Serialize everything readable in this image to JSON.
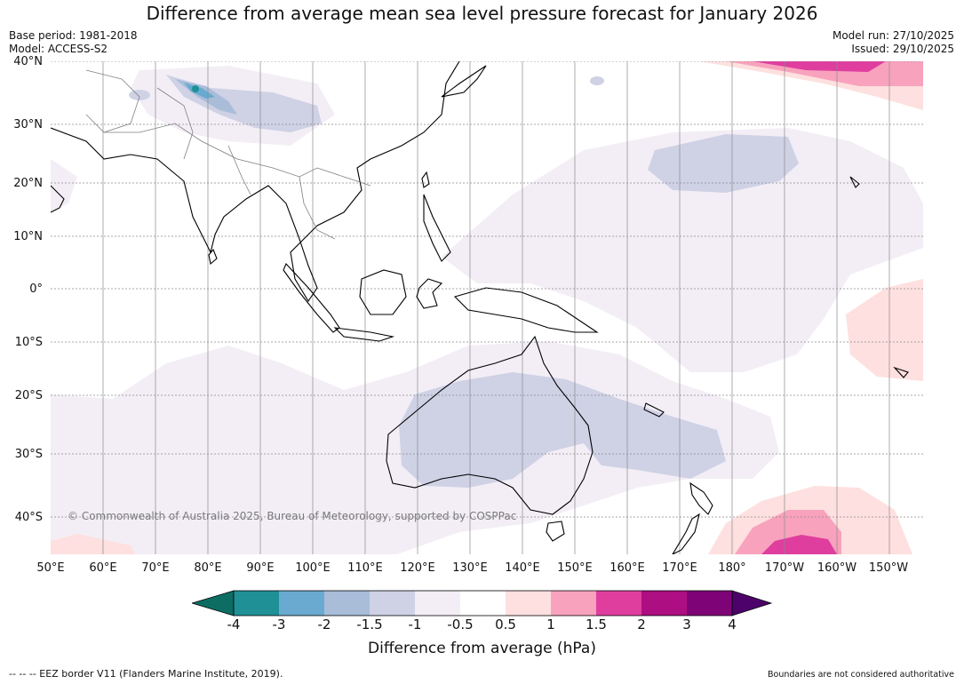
{
  "title": "Difference from average mean sea level pressure forecast for January 2026",
  "meta_left": {
    "line1": "Base period: 1981-2018",
    "line2": "Model: ACCESS-S2"
  },
  "meta_right": {
    "line1": "Model run: 27/10/2025",
    "line2": "Issued: 29/10/2025"
  },
  "lat_labels": [
    "40°N",
    "30°N",
    "20°N",
    "10°N",
    "0°",
    "10°S",
    "20°S",
    "30°S",
    "40°S"
  ],
  "lon_labels": [
    "50°E",
    "60°E",
    "70°E",
    "80°E",
    "90°E",
    "100°E",
    "110°E",
    "120°E",
    "130°E",
    "140°E",
    "150°E",
    "160°E",
    "170°E",
    "180°",
    "170°W",
    "160°W",
    "150°W"
  ],
  "copyright": "© Commonwealth of Australia 2025, Bureau of Meteorology, supported by COSPPac",
  "colorbar": {
    "ticks": [
      "-4",
      "-3",
      "-2",
      "-1.5",
      "-1",
      "-0.5",
      "0.5",
      "1",
      "1.5",
      "2",
      "3",
      "4"
    ],
    "colors": [
      "#0e6d63",
      "#1e9096",
      "#6aaad0",
      "#a9bdd9",
      "#cfd1e5",
      "#f3eef6",
      "#ffffff",
      "#fde0df",
      "#f8a2bd",
      "#df3e9f",
      "#ad0e81",
      "#7d0377",
      "#4d026b"
    ],
    "label": "Difference from average (hPa)"
  },
  "footer_left": "--  --  -- EEZ border V11 (Flanders Marine Institute, 2019).",
  "footer_right": "Boundaries are not considered authoritative"
}
